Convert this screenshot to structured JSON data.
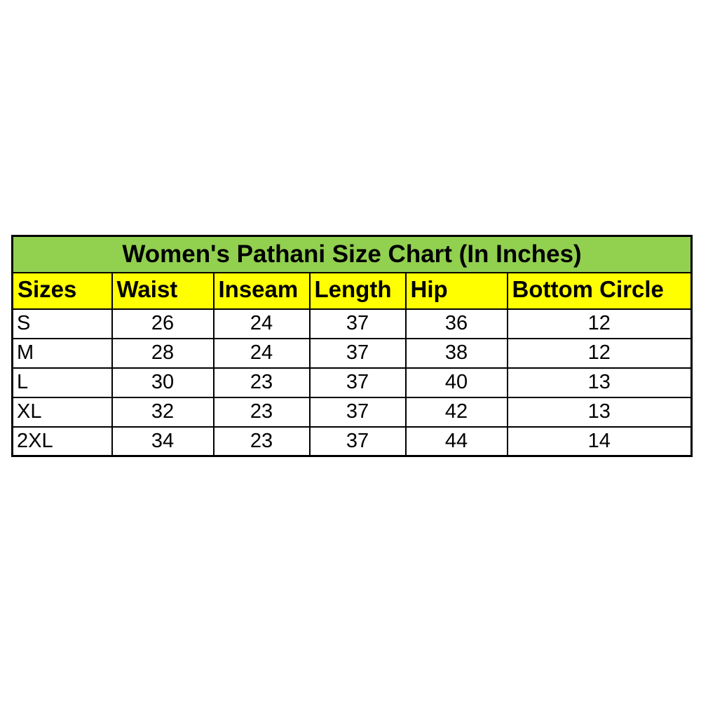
{
  "chart_data": {
    "type": "table",
    "title": "Women's Pathani Size Chart (In Inches)",
    "columns": [
      "Sizes",
      "Waist",
      "Inseam",
      "Length",
      "Hip",
      "Bottom Circle"
    ],
    "rows": [
      [
        "S",
        "26",
        "24",
        "37",
        "36",
        "12"
      ],
      [
        "M",
        "28",
        "24",
        "37",
        "38",
        "12"
      ],
      [
        "L",
        "30",
        "23",
        "37",
        "40",
        "13"
      ],
      [
        "XL",
        "32",
        "23",
        "37",
        "42",
        "13"
      ],
      [
        "2XL",
        "34",
        "23",
        "37",
        "44",
        "14"
      ]
    ],
    "colors": {
      "title_bg": "#92D050",
      "header_bg": "#FFFF00",
      "border": "#000000",
      "cell_bg": "#FFFFFF",
      "text": "#000000",
      "page_bg": "#FFFFFF"
    },
    "layout": {
      "header_text_align": "left",
      "value_text_align": "center",
      "size_column_text_align": "left",
      "grid": "on"
    }
  }
}
